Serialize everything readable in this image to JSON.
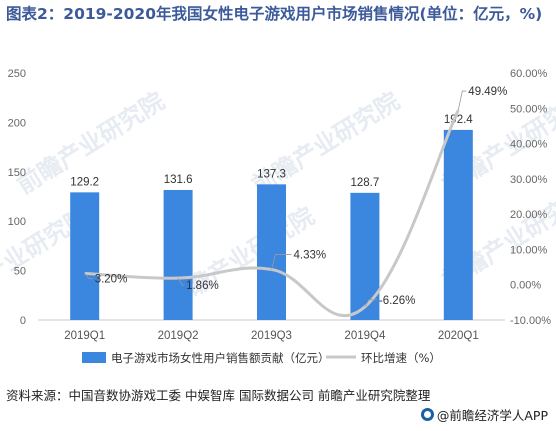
{
  "title": "图表2：2019-2020年我国女性电子游戏用户市场销售情况(单位：亿元，%)",
  "source_text": "资料来源：中国音数协游戏工委 中娱智库 国际数据公司 前瞻产业研究院整理",
  "brand_text": "@前瞻经济学人APP",
  "watermark_text": "前瞻产业研究院",
  "colors": {
    "bar": "#3b86df",
    "line": "#c8c8c8",
    "title": "#3c5a9a"
  },
  "chart_data": {
    "type": "bar",
    "categories": [
      "2019Q1",
      "2019Q2",
      "2019Q3",
      "2019Q4",
      "2020Q1"
    ],
    "series": [
      {
        "name": "电子游戏市场女性用户销售额贡献（亿元）",
        "type": "bar",
        "axis": "left",
        "values": [
          129.2,
          131.6,
          137.3,
          128.7,
          192.4
        ],
        "labels": [
          "129.2",
          "131.6",
          "137.3",
          "128.7",
          "192.4"
        ]
      },
      {
        "name": "环比增速（%）",
        "type": "line",
        "axis": "right",
        "values": [
          3.2,
          1.86,
          4.33,
          -6.26,
          49.49
        ],
        "labels": [
          "3.20%",
          "1.86%",
          "4.33%",
          "-6.26%",
          "49.49%"
        ]
      }
    ],
    "y_left": {
      "range": [
        0,
        250
      ],
      "ticks": [
        0,
        50,
        100,
        150,
        200,
        250
      ]
    },
    "y_right": {
      "range": [
        -10,
        60
      ],
      "ticks": [
        "-10.00%",
        "0.00%",
        "10.00%",
        "20.00%",
        "30.00%",
        "40.00%",
        "50.00%",
        "60.00%"
      ]
    },
    "legend_position": "bottom",
    "grid": false
  }
}
